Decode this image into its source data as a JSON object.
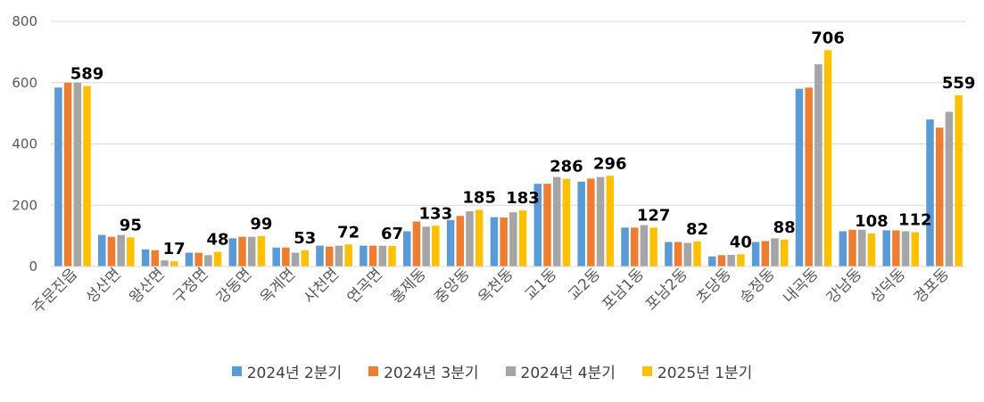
{
  "chart_data": {
    "type": "bar",
    "title": "",
    "xlabel": "",
    "ylabel": "",
    "ylim": [
      0,
      800
    ],
    "yticks": [
      0,
      200,
      400,
      600,
      800
    ],
    "grid": true,
    "legend_position": "bottom",
    "categories": [
      "주문진읍",
      "성산면",
      "왕산면",
      "구정면",
      "강동면",
      "옥계면",
      "사천면",
      "연곡면",
      "홍제동",
      "중앙동",
      "옥천동",
      "교1동",
      "교2동",
      "포남1동",
      "포남2동",
      "초당동",
      "송정동",
      "내곡동",
      "강남동",
      "성덕동",
      "경포동"
    ],
    "series": [
      {
        "name": "2024년 2분기",
        "color": "#5B9BD5",
        "values": [
          584,
          103,
          56,
          45,
          92,
          62,
          68,
          68,
          115,
          152,
          161,
          270,
          277,
          127,
          80,
          33,
          80,
          580,
          115,
          118,
          480
        ]
      },
      {
        "name": "2024년 3분기",
        "color": "#ED7D31",
        "values": [
          600,
          97,
          53,
          45,
          97,
          62,
          65,
          68,
          147,
          165,
          160,
          270,
          287,
          127,
          80,
          37,
          83,
          584,
          120,
          118,
          453
        ]
      },
      {
        "name": "2024년 4분기",
        "color": "#A5A5A5",
        "values": [
          600,
          103,
          20,
          37,
          97,
          45,
          68,
          68,
          130,
          180,
          177,
          292,
          292,
          135,
          77,
          38,
          92,
          660,
          120,
          115,
          505
        ]
      },
      {
        "name": "2025년 1분기",
        "color": "#FFC000",
        "values": [
          589,
          95,
          17,
          48,
          99,
          53,
          72,
          67,
          133,
          185,
          183,
          286,
          296,
          127,
          82,
          40,
          88,
          706,
          108,
          112,
          559
        ],
        "labels": [
          "589",
          "95",
          "17",
          "48",
          "99",
          "53",
          "72",
          "67",
          "133",
          "185",
          "183",
          "286",
          "296",
          "127",
          "82",
          "40",
          "88",
          "706",
          "108",
          "112",
          "559"
        ]
      }
    ]
  }
}
